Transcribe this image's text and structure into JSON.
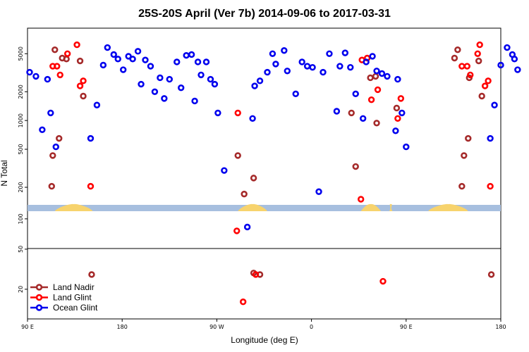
{
  "chart_data": {
    "type": "scatter",
    "title": "25S-20S April (Ver 7b)   2014-09-06 to 2017-03-31",
    "xlabel": "Longitude (deg E)",
    "ylabel": "N Total",
    "yscale": "log",
    "x_axis_range": [
      90,
      540
    ],
    "x_ticks": [
      {
        "value": 90,
        "label": "90 E"
      },
      {
        "value": 180,
        "label": "180"
      },
      {
        "value": 270,
        "label": "90 W"
      },
      {
        "value": 360,
        "label": "0"
      },
      {
        "value": 450,
        "label": "90 E"
      },
      {
        "value": 540,
        "label": "180"
      }
    ],
    "y_upper_ticks": [
      {
        "value": 200,
        "label": "200"
      },
      {
        "value": 500,
        "label": "500"
      },
      {
        "value": 1000,
        "label": "1000"
      },
      {
        "value": 2000,
        "label": "2000"
      },
      {
        "value": 5000,
        "label": "5000"
      }
    ],
    "y_lower_ticks": [
      {
        "value": 20,
        "label": "20"
      },
      {
        "value": 50,
        "label": "50"
      },
      {
        "value": 100,
        "label": "100"
      }
    ],
    "upper_range": [
      145,
      8500
    ],
    "lower_range": [
      11,
      125
    ],
    "divider_value": 50,
    "land_segments": [
      [
        116,
        152
      ],
      [
        290,
        318
      ],
      [
        407,
        426
      ],
      [
        434,
        437
      ],
      [
        471,
        509
      ]
    ],
    "legend": [
      {
        "name": "Land Nadir",
        "color": "#a52a2a"
      },
      {
        "name": "Land Glint",
        "color": "#ff0000"
      },
      {
        "name": "Ocean Glint",
        "color": "#0000ee"
      }
    ],
    "series": [
      {
        "name": "Land Nadir",
        "color": "#a52a2a",
        "points": [
          [
            116,
            5500
          ],
          [
            127,
            4400
          ],
          [
            123,
            4500
          ],
          [
            120,
            650
          ],
          [
            114,
            430
          ],
          [
            113,
            205
          ],
          [
            140,
            4200
          ],
          [
            143,
            1800
          ],
          [
            151,
            28
          ],
          [
            290,
            430
          ],
          [
            296,
            170
          ],
          [
            305,
            250
          ],
          [
            311,
            28
          ],
          [
            305,
            29
          ],
          [
            398,
            1200
          ],
          [
            402,
            330
          ],
          [
            416,
            2800
          ],
          [
            421,
            2900
          ],
          [
            422,
            940
          ],
          [
            441,
            1350
          ],
          [
            499,
            5500
          ],
          [
            496,
            4500
          ],
          [
            510,
            2800
          ],
          [
            509,
            650
          ],
          [
            505,
            430
          ],
          [
            503,
            205
          ],
          [
            519,
            4200
          ],
          [
            522,
            1800
          ],
          [
            531,
            28
          ]
        ]
      },
      {
        "name": "Land Glint",
        "color": "#ff0000",
        "points": [
          [
            118,
            3700
          ],
          [
            121,
            3000
          ],
          [
            114,
            3700
          ],
          [
            128,
            5000
          ],
          [
            137,
            6200
          ],
          [
            140,
            2300
          ],
          [
            143,
            2600
          ],
          [
            150,
            205
          ],
          [
            290,
            1200
          ],
          [
            289,
            76
          ],
          [
            295,
            15
          ],
          [
            307,
            28
          ],
          [
            407,
            150
          ],
          [
            408,
            4300
          ],
          [
            413,
            4500
          ],
          [
            417,
            1650
          ],
          [
            423,
            2100
          ],
          [
            428,
            24
          ],
          [
            442,
            1050
          ],
          [
            445,
            1700
          ],
          [
            503,
            3700
          ],
          [
            508,
            3700
          ],
          [
            511,
            3000
          ],
          [
            518,
            5000
          ],
          [
            520,
            6200
          ],
          [
            525,
            2300
          ],
          [
            528,
            2600
          ],
          [
            530,
            205
          ]
        ]
      },
      {
        "name": "Ocean Glint",
        "color": "#0000ee",
        "points": [
          [
            92,
            3200
          ],
          [
            98,
            2900
          ],
          [
            104,
            800
          ],
          [
            109,
            2700
          ],
          [
            112,
            1200
          ],
          [
            117,
            530
          ],
          [
            150,
            650
          ],
          [
            156,
            1450
          ],
          [
            162,
            3800
          ],
          [
            166,
            5800
          ],
          [
            172,
            4900
          ],
          [
            176,
            4400
          ],
          [
            181,
            3400
          ],
          [
            186,
            4700
          ],
          [
            190,
            4400
          ],
          [
            195,
            5300
          ],
          [
            198,
            2400
          ],
          [
            202,
            4300
          ],
          [
            207,
            3700
          ],
          [
            211,
            2000
          ],
          [
            216,
            2800
          ],
          [
            220,
            1700
          ],
          [
            225,
            2700
          ],
          [
            232,
            4100
          ],
          [
            236,
            2200
          ],
          [
            241,
            4800
          ],
          [
            246,
            4900
          ],
          [
            249,
            1600
          ],
          [
            252,
            4100
          ],
          [
            255,
            3000
          ],
          [
            260,
            4100
          ],
          [
            264,
            2700
          ],
          [
            268,
            2400
          ],
          [
            271,
            1200
          ],
          [
            277,
            300
          ],
          [
            299,
            83
          ],
          [
            304,
            1050
          ],
          [
            306,
            2300
          ],
          [
            311,
            2600
          ],
          [
            318,
            3200
          ],
          [
            323,
            5000
          ],
          [
            326,
            3900
          ],
          [
            334,
            5400
          ],
          [
            337,
            3300
          ],
          [
            345,
            1900
          ],
          [
            351,
            4100
          ],
          [
            356,
            3700
          ],
          [
            361,
            3600
          ],
          [
            367,
            180
          ],
          [
            371,
            3200
          ],
          [
            377,
            5000
          ],
          [
            384,
            1250
          ],
          [
            387,
            3700
          ],
          [
            392,
            5100
          ],
          [
            397,
            3600
          ],
          [
            402,
            1900
          ],
          [
            409,
            1050
          ],
          [
            412,
            4100
          ],
          [
            418,
            4700
          ],
          [
            422,
            3300
          ],
          [
            427,
            3100
          ],
          [
            432,
            2900
          ],
          [
            440,
            780
          ],
          [
            442,
            2700
          ],
          [
            446,
            1200
          ],
          [
            450,
            530
          ],
          [
            530,
            650
          ],
          [
            534,
            1450
          ],
          [
            540,
            3800
          ],
          [
            546,
            5800
          ],
          [
            551,
            4900
          ],
          [
            553,
            4400
          ],
          [
            556,
            3400
          ]
        ]
      }
    ]
  }
}
